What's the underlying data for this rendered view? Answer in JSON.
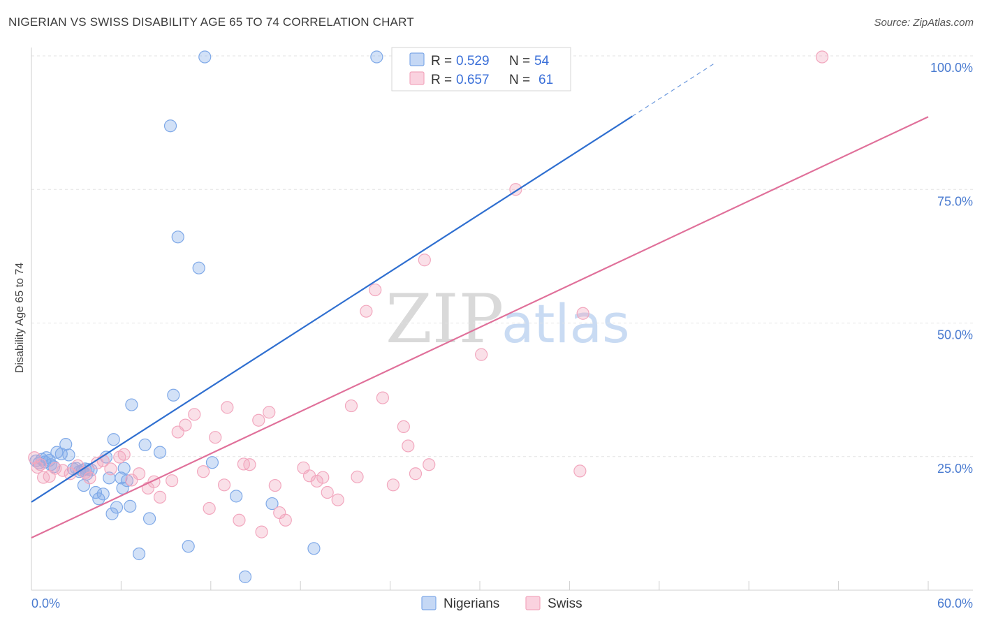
{
  "title": "NIGERIAN VS SWISS DISABILITY AGE 65 TO 74 CORRELATION CHART",
  "source": "Source: ZipAtlas.com",
  "watermark": {
    "zip": "ZIP",
    "atlas": "atlas"
  },
  "legend_top": {
    "r_label": "R =",
    "n_label": "N =",
    "entries": [
      {
        "r": "0.529",
        "n": "54",
        "color": "#7fa9e8"
      },
      {
        "r": "0.657",
        "n": "61",
        "color": "#f2a7be"
      }
    ]
  },
  "chart_data": {
    "type": "scatter",
    "title": "NIGERIAN VS SWISS DISABILITY AGE 65 TO 74 CORRELATION CHART",
    "xlabel": "",
    "ylabel": "Disability Age 65 to 74",
    "xlim": [
      0,
      60
    ],
    "ylim": [
      0,
      100
    ],
    "x_tick_labels": [
      "0.0%",
      "60.0%"
    ],
    "y_ticks": [
      25,
      50,
      75,
      100
    ],
    "y_tick_labels": [
      "25.0%",
      "50.0%",
      "75.0%",
      "100.0%"
    ],
    "grid": true,
    "series": [
      {
        "name": "Nigerians",
        "color": "#7fa9e8",
        "line_color": "#2f6fd0",
        "r": 0.529,
        "n": 54,
        "trend": {
          "x0": 0,
          "y0": 16.5,
          "x1": 40.2,
          "y1": 88.7,
          "dash_x1": 45.7,
          "dash_y1": 98.6
        },
        "points": [
          [
            0.3,
            24.2
          ],
          [
            0.5,
            23.8
          ],
          [
            0.7,
            24.5
          ],
          [
            0.9,
            24.0
          ],
          [
            1.0,
            24.8
          ],
          [
            1.2,
            24.3
          ],
          [
            1.3,
            23.5
          ],
          [
            1.5,
            23.1
          ],
          [
            1.7,
            25.8
          ],
          [
            2.0,
            25.5
          ],
          [
            2.3,
            27.3
          ],
          [
            2.5,
            25.3
          ],
          [
            2.8,
            22.7
          ],
          [
            3.0,
            22.8
          ],
          [
            3.2,
            22.2
          ],
          [
            3.4,
            22.4
          ],
          [
            3.6,
            22.7
          ],
          [
            3.8,
            22.6
          ],
          [
            3.7,
            21.7
          ],
          [
            3.5,
            19.6
          ],
          [
            4.0,
            22.5
          ],
          [
            4.3,
            18.3
          ],
          [
            4.5,
            17.1
          ],
          [
            4.8,
            18.0
          ],
          [
            5.0,
            24.9
          ],
          [
            5.2,
            21.0
          ],
          [
            5.4,
            14.3
          ],
          [
            5.5,
            28.2
          ],
          [
            5.7,
            15.5
          ],
          [
            6.0,
            21.0
          ],
          [
            6.1,
            19.1
          ],
          [
            6.2,
            22.8
          ],
          [
            6.4,
            20.5
          ],
          [
            6.6,
            15.7
          ],
          [
            6.7,
            34.7
          ],
          [
            7.2,
            6.8
          ],
          [
            7.6,
            27.2
          ],
          [
            7.9,
            13.4
          ],
          [
            8.6,
            25.8
          ],
          [
            9.3,
            86.9
          ],
          [
            9.5,
            36.5
          ],
          [
            9.8,
            66.1
          ],
          [
            10.5,
            8.2
          ],
          [
            11.2,
            60.3
          ],
          [
            11.6,
            99.8
          ],
          [
            12.1,
            23.9
          ],
          [
            13.7,
            17.6
          ],
          [
            14.3,
            2.5
          ],
          [
            16.1,
            16.2
          ],
          [
            18.9,
            7.8
          ],
          [
            23.1,
            99.8
          ],
          [
            35.6,
            99.8
          ],
          [
            33.4,
            99.9
          ],
          [
            35.0,
            99.7
          ]
        ]
      },
      {
        "name": "Swiss",
        "color": "#f2a7be",
        "line_color": "#e0709a",
        "r": 0.657,
        "n": 61,
        "trend": {
          "x0": 0,
          "y0": 9.8,
          "x1": 60,
          "y1": 88.6
        },
        "points": [
          [
            0.2,
            24.8
          ],
          [
            0.4,
            23.0
          ],
          [
            0.6,
            23.5
          ],
          [
            0.8,
            21.1
          ],
          [
            1.2,
            21.3
          ],
          [
            1.6,
            22.8
          ],
          [
            2.1,
            22.4
          ],
          [
            2.6,
            21.8
          ],
          [
            3.1,
            23.3
          ],
          [
            3.6,
            22.0
          ],
          [
            3.9,
            21.0
          ],
          [
            4.4,
            23.8
          ],
          [
            4.8,
            24.2
          ],
          [
            5.3,
            22.7
          ],
          [
            5.9,
            24.9
          ],
          [
            6.2,
            25.4
          ],
          [
            6.7,
            20.6
          ],
          [
            7.2,
            21.8
          ],
          [
            7.8,
            19.1
          ],
          [
            8.2,
            20.3
          ],
          [
            8.6,
            17.4
          ],
          [
            9.4,
            20.5
          ],
          [
            9.8,
            29.6
          ],
          [
            10.3,
            30.9
          ],
          [
            10.9,
            32.9
          ],
          [
            11.5,
            22.2
          ],
          [
            11.9,
            15.3
          ],
          [
            12.3,
            28.6
          ],
          [
            12.9,
            19.7
          ],
          [
            13.1,
            34.2
          ],
          [
            13.9,
            13.1
          ],
          [
            14.2,
            23.6
          ],
          [
            14.6,
            23.5
          ],
          [
            15.2,
            31.8
          ],
          [
            15.4,
            10.9
          ],
          [
            15.9,
            33.3
          ],
          [
            16.3,
            19.6
          ],
          [
            16.6,
            14.5
          ],
          [
            17.0,
            13.1
          ],
          [
            18.2,
            22.9
          ],
          [
            18.6,
            21.4
          ],
          [
            19.1,
            20.4
          ],
          [
            19.5,
            21.1
          ],
          [
            19.8,
            18.3
          ],
          [
            20.5,
            16.9
          ],
          [
            21.4,
            34.5
          ],
          [
            21.8,
            21.2
          ],
          [
            22.4,
            52.2
          ],
          [
            23.0,
            56.2
          ],
          [
            23.5,
            36.0
          ],
          [
            24.2,
            19.7
          ],
          [
            24.9,
            30.6
          ],
          [
            25.2,
            27.0
          ],
          [
            25.7,
            21.8
          ],
          [
            26.3,
            61.8
          ],
          [
            26.6,
            23.5
          ],
          [
            30.1,
            44.1
          ],
          [
            32.4,
            75.0
          ],
          [
            36.9,
            51.8
          ],
          [
            36.7,
            22.3
          ],
          [
            52.9,
            99.8
          ]
        ]
      }
    ]
  },
  "bottom_legend": [
    {
      "label": "Nigerians",
      "color": "#7fa9e8"
    },
    {
      "label": "Swiss",
      "color": "#f2a7be"
    }
  ]
}
